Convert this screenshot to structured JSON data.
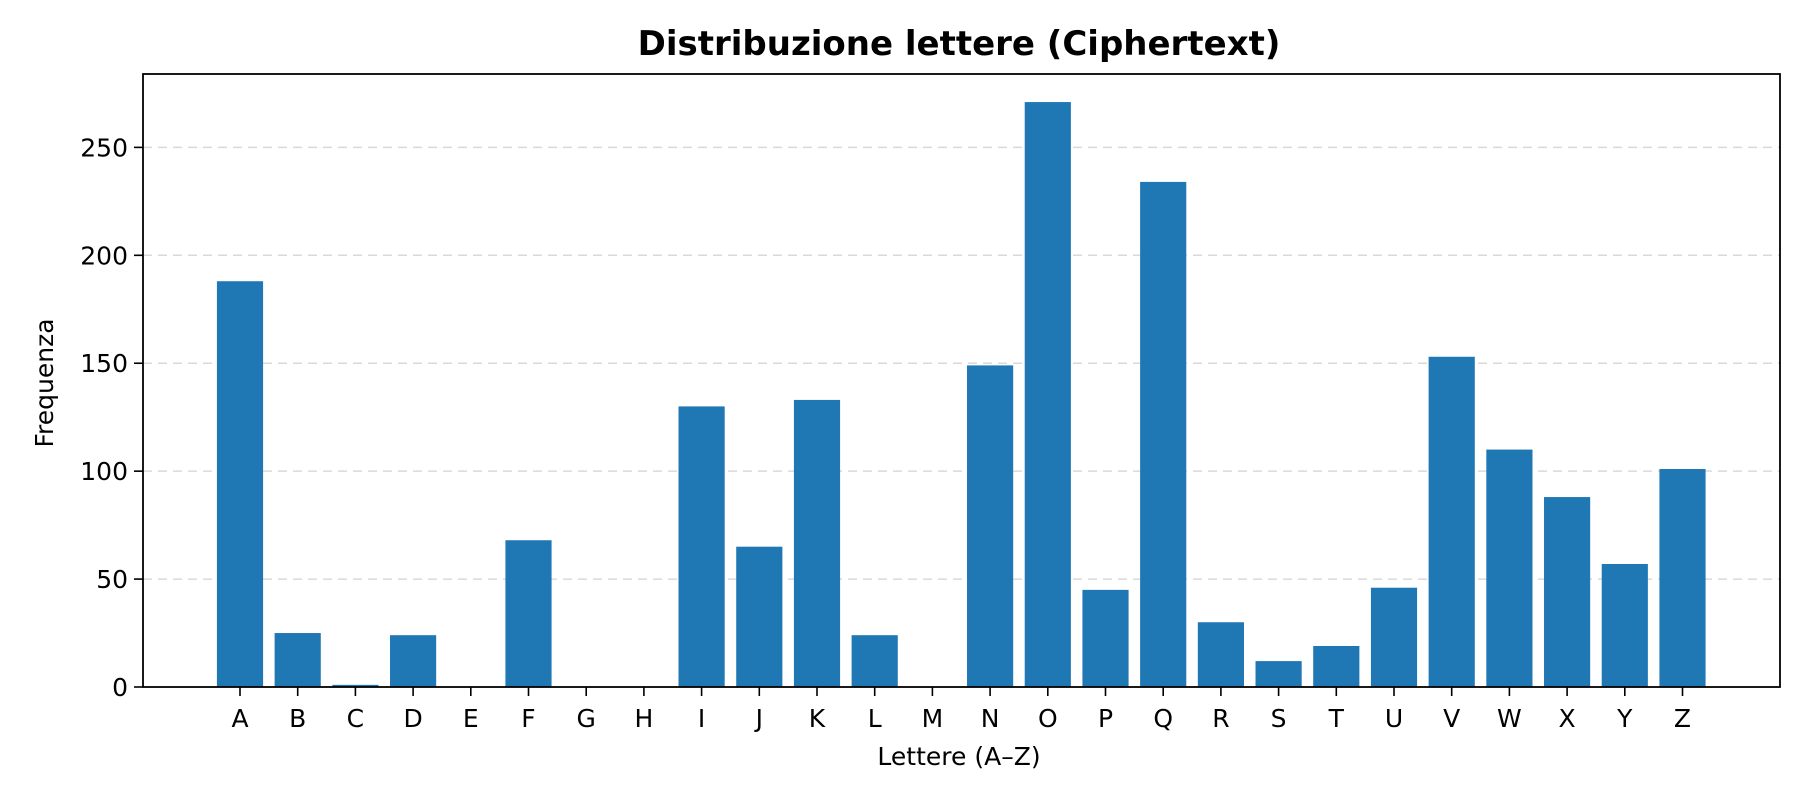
{
  "chart_data": {
    "type": "bar",
    "title": "Distribuzione lettere (Ciphertext)",
    "xlabel": "Lettere (A–Z)",
    "ylabel": "Frequenza",
    "categories": [
      "A",
      "B",
      "C",
      "D",
      "E",
      "F",
      "G",
      "H",
      "I",
      "J",
      "K",
      "L",
      "M",
      "N",
      "O",
      "P",
      "Q",
      "R",
      "S",
      "T",
      "U",
      "V",
      "W",
      "X",
      "Y",
      "Z"
    ],
    "values": [
      188,
      25,
      1,
      24,
      0,
      68,
      0,
      0,
      130,
      65,
      133,
      24,
      0,
      149,
      271,
      45,
      234,
      30,
      12,
      19,
      46,
      153,
      110,
      88,
      57,
      101
    ],
    "ylim": [
      0,
      284
    ],
    "yticks": [
      0,
      50,
      100,
      150,
      200,
      250
    ],
    "grid": "y-dashed",
    "bar_color": "#1f77b4",
    "grid_color": "#d9d9d9"
  }
}
